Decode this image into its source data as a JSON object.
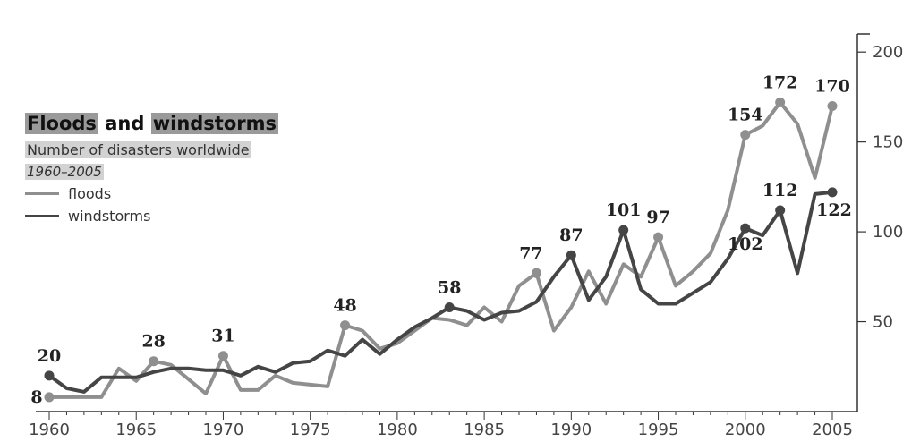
{
  "chart_data": {
    "type": "line",
    "title_part1": "Floods",
    "title_part2": "and",
    "title_part3": "windstorms",
    "subtitle": "Number of disasters worldwide",
    "period": "1960–2005",
    "legend": [
      "floods",
      "windstorms"
    ],
    "xlim": [
      1960,
      2005
    ],
    "ylim": [
      0,
      220
    ],
    "x_ticks": [
      1960,
      1965,
      1970,
      1975,
      1980,
      1985,
      1990,
      1995,
      2000,
      2005
    ],
    "y_ticks": [
      50,
      100,
      150,
      200
    ],
    "colors": {
      "floods": "#8f8f8f",
      "windstorms": "#454545"
    },
    "series": [
      {
        "name": "floods",
        "x": [
          1960,
          1961,
          1962,
          1963,
          1964,
          1965,
          1966,
          1967,
          1968,
          1969,
          1970,
          1971,
          1972,
          1973,
          1974,
          1975,
          1976,
          1977,
          1978,
          1979,
          1980,
          1981,
          1982,
          1983,
          1984,
          1985,
          1986,
          1987,
          1988,
          1989,
          1990,
          1991,
          1992,
          1993,
          1994,
          1995,
          1996,
          1997,
          1998,
          1999,
          2000,
          2001,
          2002,
          2003,
          2004,
          2005
        ],
        "y": [
          8,
          8,
          8,
          8,
          24,
          17,
          28,
          26,
          18,
          10,
          31,
          12,
          12,
          20,
          16,
          15,
          14,
          48,
          45,
          35,
          38,
          45,
          52,
          51,
          48,
          58,
          50,
          70,
          77,
          45,
          58,
          78,
          60,
          82,
          75,
          97,
          70,
          78,
          88,
          112,
          154,
          159,
          172,
          160,
          130,
          170
        ]
      },
      {
        "name": "windstorms",
        "x": [
          1960,
          1961,
          1962,
          1963,
          1964,
          1965,
          1966,
          1967,
          1968,
          1969,
          1970,
          1971,
          1972,
          1973,
          1974,
          1975,
          1976,
          1977,
          1978,
          1979,
          1980,
          1981,
          1982,
          1983,
          1984,
          1985,
          1986,
          1987,
          1988,
          1989,
          1990,
          1991,
          1992,
          1993,
          1994,
          1995,
          1996,
          1997,
          1998,
          1999,
          2000,
          2001,
          2002,
          2003,
          2004,
          2005
        ],
        "y": [
          20,
          13,
          11,
          19,
          19,
          19,
          22,
          24,
          24,
          23,
          23,
          20,
          25,
          22,
          27,
          28,
          34,
          31,
          40,
          32,
          40,
          47,
          52,
          58,
          56,
          51,
          55,
          56,
          61,
          75,
          87,
          62,
          75,
          101,
          68,
          60,
          60,
          66,
          72,
          85,
          102,
          98,
          112,
          77,
          121,
          122
        ]
      }
    ],
    "annotations": [
      {
        "series": "windstorms",
        "x": 1960,
        "label": "20"
      },
      {
        "series": "floods",
        "x": 1960,
        "label": "8"
      },
      {
        "series": "floods",
        "x": 1966,
        "label": "28"
      },
      {
        "series": "floods",
        "x": 1970,
        "label": "31"
      },
      {
        "series": "floods",
        "x": 1977,
        "label": "48"
      },
      {
        "series": "windstorms",
        "x": 1983,
        "label": "58"
      },
      {
        "series": "floods",
        "x": 1988,
        "label": "77"
      },
      {
        "series": "windstorms",
        "x": 1990,
        "label": "87"
      },
      {
        "series": "windstorms",
        "x": 1993,
        "label": "101"
      },
      {
        "series": "floods",
        "x": 1995,
        "label": "97"
      },
      {
        "series": "windstorms",
        "x": 2000,
        "label": "102"
      },
      {
        "series": "floods",
        "x": 2000,
        "label": "154"
      },
      {
        "series": "floods",
        "x": 2002,
        "label": "172"
      },
      {
        "series": "windstorms",
        "x": 2002,
        "label": "112"
      },
      {
        "series": "floods",
        "x": 2005,
        "label": "170"
      },
      {
        "series": "windstorms",
        "x": 2005,
        "label": "122"
      }
    ],
    "grid": false,
    "legend_position": "left"
  }
}
